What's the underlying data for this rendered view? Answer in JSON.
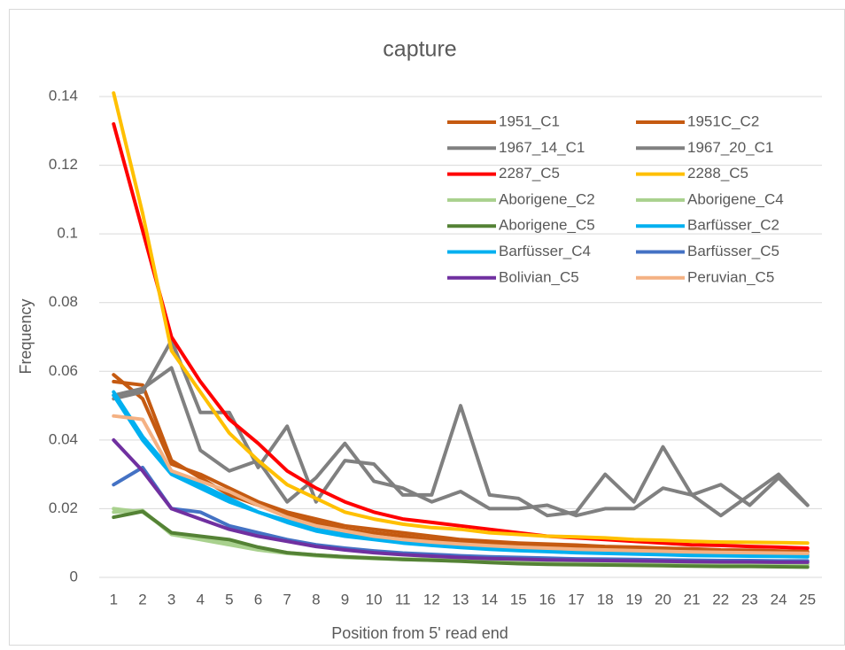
{
  "chart_data": {
    "type": "line",
    "title": "capture",
    "x_label": "Position from 5' read end",
    "y_label": "Frequency",
    "categories": [
      "1",
      "2",
      "3",
      "4",
      "5",
      "6",
      "7",
      "8",
      "9",
      "10",
      "11",
      "12",
      "13",
      "14",
      "15",
      "16",
      "17",
      "18",
      "19",
      "20",
      "21",
      "22",
      "23",
      "24",
      "25"
    ],
    "ylim": [
      0,
      0.14
    ],
    "yticks": [
      0,
      0.02,
      0.04,
      0.06,
      0.08,
      0.1,
      0.12,
      0.14
    ],
    "grid": true,
    "legend": "upper right",
    "series": [
      {
        "name": "1951_C1",
        "color": "#c55a11",
        "values": [
          0.057,
          0.056,
          0.034,
          0.029,
          0.024,
          0.021,
          0.018,
          0.016,
          0.014,
          0.013,
          0.012,
          0.011,
          0.0105,
          0.01,
          0.0095,
          0.009,
          0.0088,
          0.0085,
          0.0083,
          0.008,
          0.0078,
          0.0076,
          0.0075,
          0.0073,
          0.0072
        ]
      },
      {
        "name": "1951C_C2",
        "color": "#c55a11",
        "values": [
          0.059,
          0.052,
          0.033,
          0.03,
          0.026,
          0.022,
          0.019,
          0.017,
          0.015,
          0.014,
          0.013,
          0.012,
          0.011,
          0.0105,
          0.01,
          0.0097,
          0.0094,
          0.009,
          0.0088,
          0.0085,
          0.0083,
          0.008,
          0.0079,
          0.0077,
          0.0075
        ]
      },
      {
        "name": "1967_14_C1",
        "color": "#808080",
        "values": [
          0.052,
          0.054,
          0.069,
          0.048,
          0.048,
          0.032,
          0.044,
          0.022,
          0.034,
          0.033,
          0.024,
          0.024,
          0.05,
          0.024,
          0.023,
          0.018,
          0.019,
          0.03,
          0.022,
          0.038,
          0.024,
          0.018,
          0.024,
          0.03,
          0.021
        ]
      },
      {
        "name": "1967_20_C1",
        "color": "#808080",
        "values": [
          0.053,
          0.055,
          0.061,
          0.037,
          0.031,
          0.034,
          0.022,
          0.029,
          0.039,
          0.028,
          0.026,
          0.022,
          0.025,
          0.02,
          0.02,
          0.021,
          0.018,
          0.02,
          0.02,
          0.026,
          0.024,
          0.027,
          0.021,
          0.029,
          0.021
        ]
      },
      {
        "name": "2287_C5",
        "color": "#ff0000",
        "values": [
          0.132,
          0.101,
          0.07,
          0.057,
          0.046,
          0.039,
          0.031,
          0.026,
          0.022,
          0.019,
          0.017,
          0.016,
          0.015,
          0.014,
          0.013,
          0.012,
          0.0115,
          0.011,
          0.0105,
          0.01,
          0.0095,
          0.0093,
          0.009,
          0.0088,
          0.0085
        ]
      },
      {
        "name": "2288_C5",
        "color": "#ffc000",
        "values": [
          0.141,
          0.106,
          0.066,
          0.054,
          0.042,
          0.034,
          0.027,
          0.023,
          0.019,
          0.017,
          0.0155,
          0.0145,
          0.014,
          0.013,
          0.0125,
          0.012,
          0.0118,
          0.0115,
          0.011,
          0.0108,
          0.0105,
          0.0103,
          0.0102,
          0.0101,
          0.01
        ]
      },
      {
        "name": "Aborigene_C2",
        "color": "#a9d18e",
        "values": [
          0.02,
          0.019,
          0.013,
          0.0115,
          0.01,
          0.0085,
          0.0072,
          0.0065,
          0.006,
          0.0057,
          0.0054,
          0.0052,
          0.005,
          0.0048,
          0.0046,
          0.0045,
          0.0044,
          0.0043,
          0.0042,
          0.0041,
          0.004,
          0.0039,
          0.0039,
          0.0038,
          0.0038
        ]
      },
      {
        "name": "Aborigene_C4",
        "color": "#a9d18e",
        "values": [
          0.019,
          0.0195,
          0.0125,
          0.011,
          0.0095,
          0.008,
          0.007,
          0.0063,
          0.0058,
          0.0055,
          0.0052,
          0.005,
          0.0048,
          0.0046,
          0.0044,
          0.0043,
          0.0042,
          0.0041,
          0.004,
          0.0039,
          0.0038,
          0.0037,
          0.0037,
          0.0036,
          0.0036
        ]
      },
      {
        "name": "Aborigene_C5",
        "color": "#548235",
        "values": [
          0.0175,
          0.0192,
          0.013,
          0.012,
          0.011,
          0.0088,
          0.0072,
          0.0065,
          0.006,
          0.0056,
          0.0052,
          0.005,
          0.0047,
          0.0043,
          0.004,
          0.0038,
          0.0037,
          0.0036,
          0.0035,
          0.0034,
          0.0033,
          0.0032,
          0.0032,
          0.0031,
          0.003
        ]
      },
      {
        "name": "Barfüsser_C2",
        "color": "#00b0f0",
        "values": [
          0.054,
          0.041,
          0.031,
          0.027,
          0.023,
          0.019,
          0.016,
          0.0135,
          0.012,
          0.011,
          0.01,
          0.0093,
          0.0087,
          0.0082,
          0.0078,
          0.0075,
          0.0072,
          0.007,
          0.0068,
          0.0066,
          0.0064,
          0.0063,
          0.0062,
          0.0061,
          0.006
        ]
      },
      {
        "name": "Barfüsser_C4",
        "color": "#00b0f0",
        "values": [
          0.053,
          0.04,
          0.03,
          0.026,
          0.022,
          0.019,
          0.0165,
          0.014,
          0.0125,
          0.0115,
          0.0105,
          0.0098,
          0.0092,
          0.0088,
          0.0084,
          0.008,
          0.0078,
          0.0075,
          0.0073,
          0.0071,
          0.007,
          0.0068,
          0.0067,
          0.0066,
          0.0065
        ]
      },
      {
        "name": "Barfüsser_C5",
        "color": "#4472c4",
        "values": [
          0.027,
          0.032,
          0.02,
          0.019,
          0.015,
          0.013,
          0.011,
          0.0095,
          0.0085,
          0.0077,
          0.0071,
          0.0067,
          0.0063,
          0.006,
          0.0058,
          0.0056,
          0.0054,
          0.0053,
          0.0052,
          0.0051,
          0.005,
          0.0049,
          0.0049,
          0.0048,
          0.0048
        ]
      },
      {
        "name": "Bolivian_C5",
        "color": "#7030a0",
        "values": [
          0.04,
          0.031,
          0.02,
          0.017,
          0.014,
          0.012,
          0.0105,
          0.009,
          0.008,
          0.0072,
          0.0066,
          0.0062,
          0.0058,
          0.0055,
          0.0053,
          0.0051,
          0.005,
          0.0049,
          0.0048,
          0.0047,
          0.0046,
          0.0045,
          0.0045,
          0.0044,
          0.0044
        ]
      },
      {
        "name": "Peruvian_C5",
        "color": "#f4b183",
        "values": [
          0.047,
          0.046,
          0.031,
          0.028,
          0.025,
          0.021,
          0.0175,
          0.015,
          0.0135,
          0.012,
          0.011,
          0.0103,
          0.0097,
          0.0092,
          0.0088,
          0.0085,
          0.0082,
          0.008,
          0.0078,
          0.0076,
          0.0074,
          0.0073,
          0.0072,
          0.0071,
          0.007
        ]
      }
    ]
  }
}
